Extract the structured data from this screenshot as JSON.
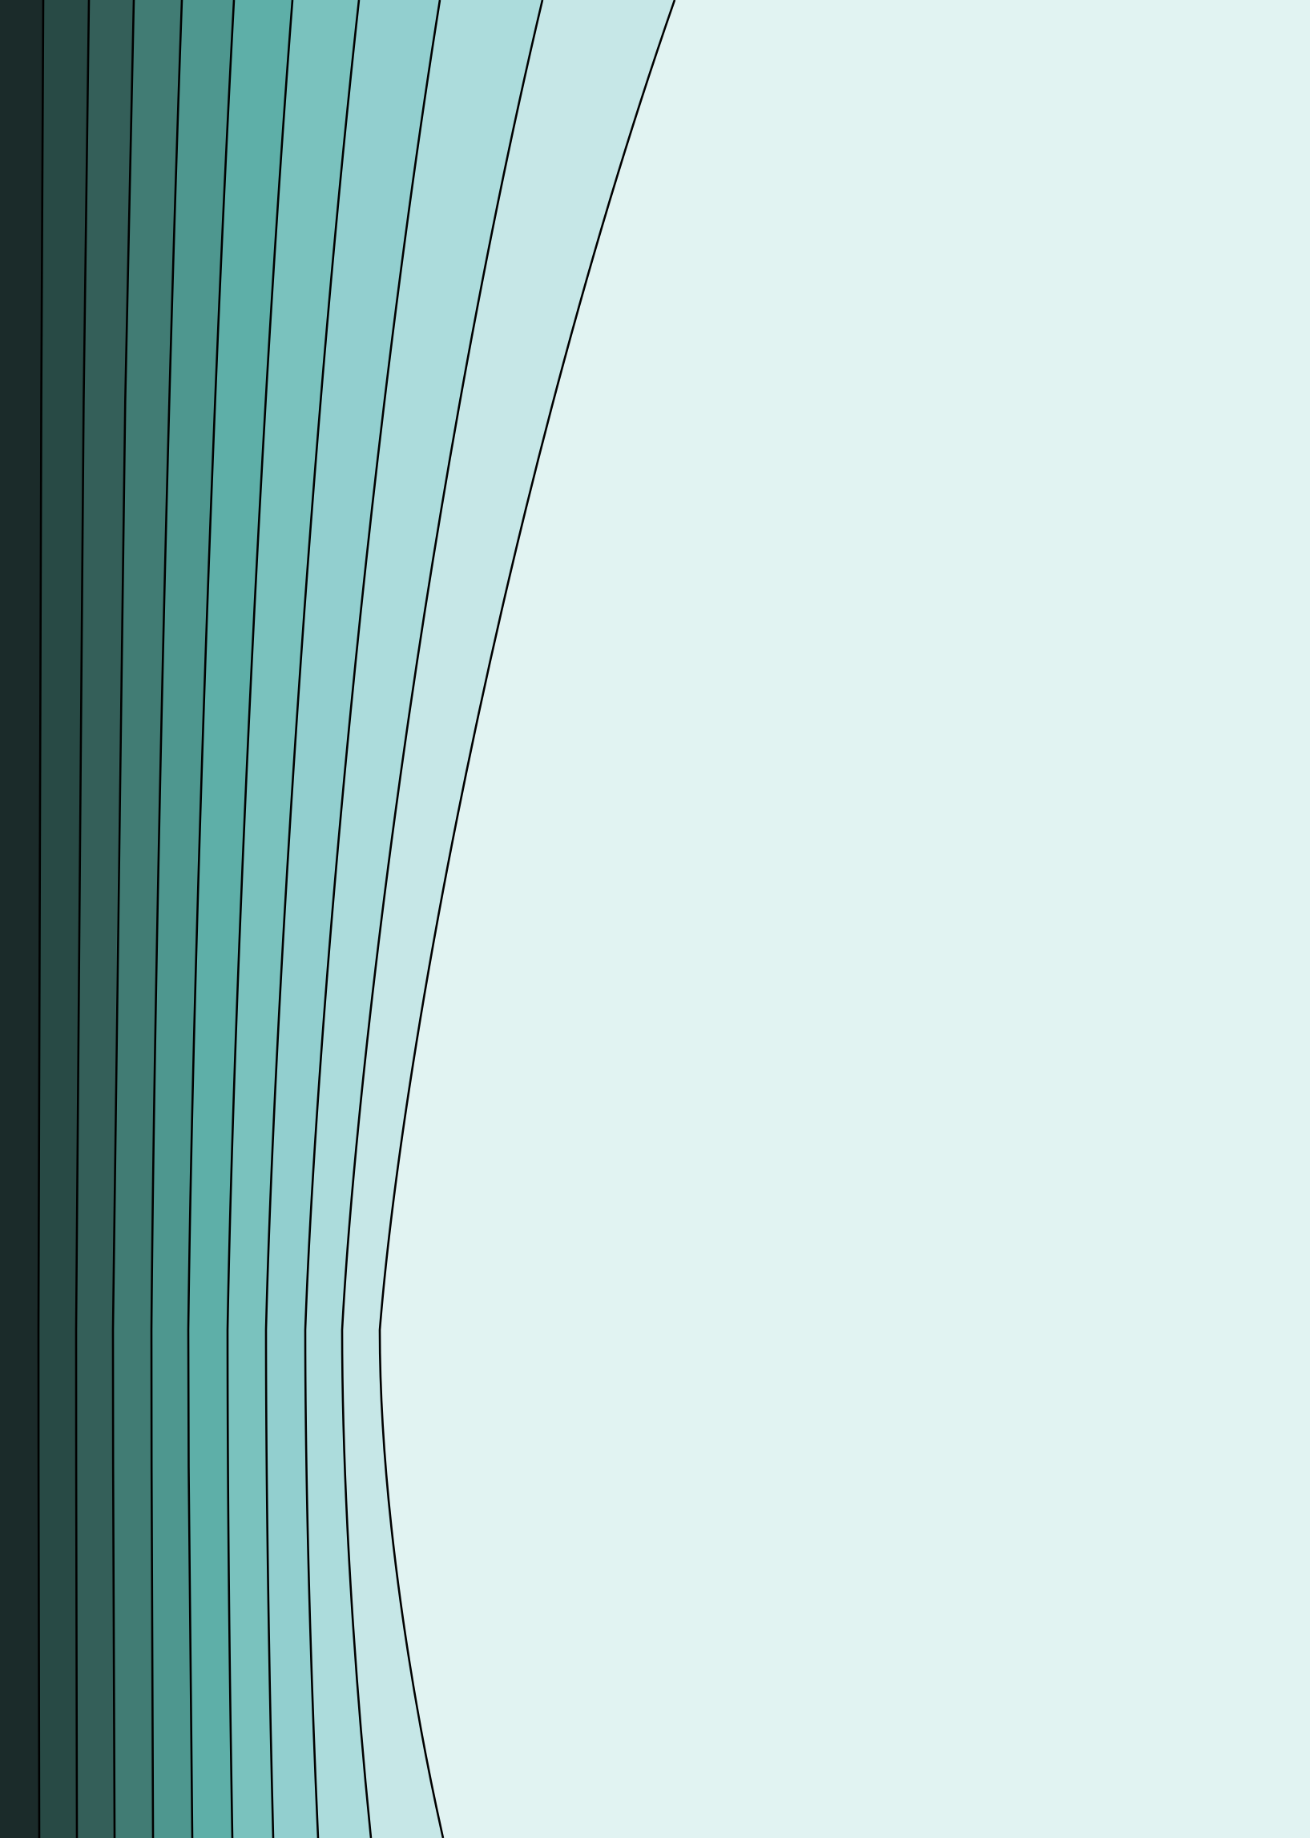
{
  "artwork": {
    "background_color": "#e1f3f2",
    "stroke_color": "#000000",
    "band_colors": [
      "#1b2b2a",
      "#284a45",
      "#345f59",
      "#417c74",
      "#4e978f",
      "#5eafa8",
      "#7ac2be",
      "#92cfcf",
      "#acdcdc",
      "#c6e7e7"
    ]
  }
}
